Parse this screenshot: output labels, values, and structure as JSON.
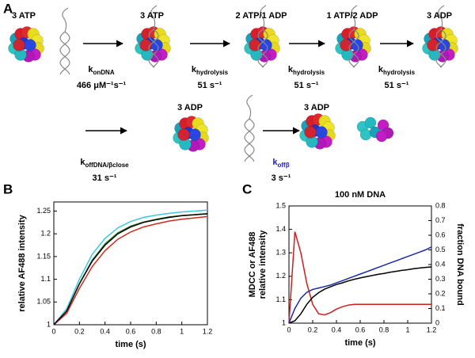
{
  "panels": [
    "A",
    "B",
    "C"
  ],
  "scheme": {
    "states": [
      "3 ATP",
      "3 ATP",
      "2 ATP/1 ADP",
      "1 ATP/2 ADP",
      "3 ADP",
      "3 ADP",
      "3 ADP"
    ],
    "steps": [
      {
        "symbol": "k",
        "subscript": "onDNA",
        "value": "466 μM⁻¹s⁻¹",
        "color": "#000000"
      },
      {
        "symbol": "k",
        "subscript": "hydrolysis",
        "value": "51 s⁻¹",
        "color": "#000000"
      },
      {
        "symbol": "k",
        "subscript": "hydrolysis",
        "value": "51 s⁻¹",
        "color": "#000000"
      },
      {
        "symbol": "k",
        "subscript": "hydrolysis",
        "value": "51 s⁻¹",
        "color": "#000000"
      },
      {
        "symbol": "k",
        "subscript": "offDNA/βclose",
        "value": "31 s⁻¹",
        "color": "#000000"
      },
      {
        "symbol": "k",
        "subscript": "offβ",
        "value": "3 s⁻¹",
        "color": "#1f1fbf"
      }
    ]
  },
  "chart_data": [
    {
      "type": "line",
      "x_label": "time (s)",
      "y_label": "relative AF488 intensity",
      "x": [
        0,
        0.1,
        0.2,
        0.3,
        0.4,
        0.5,
        0.6,
        0.7,
        0.8,
        0.9,
        1,
        1.1,
        1.2
      ],
      "xlim": [
        0,
        1.2
      ],
      "xticks": [
        0,
        0.2,
        0.4,
        0.6,
        0.8,
        1,
        1.2
      ],
      "ylim": [
        1,
        1.27
      ],
      "yticks": [
        1,
        1.05,
        1.1,
        1.15,
        1.2,
        1.25
      ],
      "series": [
        {
          "color": "#3cc8e0",
          "values": [
            1,
            1.035,
            1.1,
            1.155,
            1.19,
            1.213,
            1.227,
            1.236,
            1.241,
            1.245,
            1.248,
            1.25,
            1.252
          ]
        },
        {
          "color": "#2e8b2e",
          "values": [
            1,
            1.03,
            1.09,
            1.142,
            1.178,
            1.202,
            1.217,
            1.226,
            1.232,
            1.237,
            1.24,
            1.242,
            1.244
          ]
        },
        {
          "color": "#d02a1e",
          "values": [
            1,
            1.025,
            1.08,
            1.128,
            1.163,
            1.188,
            1.204,
            1.215,
            1.222,
            1.228,
            1.232,
            1.235,
            1.238
          ]
        },
        {
          "color": "#000000",
          "values": [
            1,
            1.03,
            1.09,
            1.14,
            1.175,
            1.2,
            1.215,
            1.225,
            1.231,
            1.236,
            1.24,
            1.242,
            1.244
          ]
        }
      ]
    },
    {
      "type": "line",
      "title": "100 nM DNA",
      "x_label": "time (s)",
      "y_label": [
        "MDCC or AF488",
        "relative intensity"
      ],
      "y2_label": "fraction DNA bound",
      "x": [
        0,
        0.05,
        0.1,
        0.15,
        0.2,
        0.25,
        0.3,
        0.35,
        0.4,
        0.45,
        0.5,
        0.55,
        0.6,
        0.65,
        0.7,
        0.75,
        0.8,
        0.85,
        0.9,
        0.95,
        1,
        1.05,
        1.1,
        1.15,
        1.2
      ],
      "xlim": [
        0,
        1.2
      ],
      "xticks": [
        0,
        0.2,
        0.4,
        0.6,
        0.8,
        1,
        1.2
      ],
      "ylim": [
        1,
        1.5
      ],
      "yticks": [
        1,
        1.1,
        1.2,
        1.3,
        1.4,
        1.5
      ],
      "y2lim": [
        0,
        0.8
      ],
      "y2ticks": [
        0,
        0.1,
        0.2,
        0.3,
        0.4,
        0.5,
        0.6,
        0.7,
        0.8
      ],
      "series": [
        {
          "color": "#cc1f1f",
          "values": [
            1,
            1.39,
            1.3,
            1.17,
            1.08,
            1.04,
            1.035,
            1.045,
            1.06,
            1.07,
            1.077,
            1.08,
            1.08,
            1.08,
            1.08,
            1.08,
            1.08,
            1.08,
            1.08,
            1.08,
            1.08,
            1.08,
            1.08,
            1.08,
            1.08
          ]
        },
        {
          "color": "#000000",
          "values": [
            1,
            1.01,
            1.04,
            1.08,
            1.11,
            1.13,
            1.145,
            1.155,
            1.165,
            1.172,
            1.18,
            1.187,
            1.193,
            1.198,
            1.203,
            1.208,
            1.212,
            1.217,
            1.221,
            1.225,
            1.228,
            1.232,
            1.235,
            1.238,
            1.24
          ]
        },
        {
          "color": "#1a2aa8",
          "axis": "y2",
          "values": [
            0,
            0.1,
            0.17,
            0.21,
            0.23,
            0.24,
            0.25,
            0.26,
            0.275,
            0.29,
            0.305,
            0.32,
            0.335,
            0.35,
            0.365,
            0.38,
            0.395,
            0.41,
            0.425,
            0.44,
            0.455,
            0.47,
            0.485,
            0.5,
            0.52
          ]
        }
      ]
    }
  ]
}
